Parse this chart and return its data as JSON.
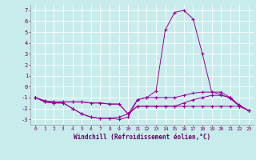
{
  "xlabel": "Windchill (Refroidissement éolien,°C)",
  "background_color": "#c8ecec",
  "grid_color": "#aadddd",
  "line_color": "#990099",
  "xlim": [
    -0.5,
    23.5
  ],
  "ylim": [
    -3.5,
    7.5
  ],
  "xticks": [
    0,
    1,
    2,
    3,
    4,
    5,
    6,
    7,
    8,
    9,
    10,
    11,
    12,
    13,
    14,
    15,
    16,
    17,
    18,
    19,
    20,
    21,
    22,
    23
  ],
  "yticks": [
    -3,
    -2,
    -1,
    0,
    1,
    2,
    3,
    4,
    5,
    6,
    7
  ],
  "line1_y": [
    -1.0,
    -1.4,
    -1.5,
    -1.5,
    -2.0,
    -2.5,
    -2.8,
    -2.9,
    -2.9,
    -3.0,
    -2.8,
    -1.2,
    -1.0,
    -0.4,
    5.2,
    6.8,
    7.0,
    6.2,
    3.0,
    -0.5,
    -0.7,
    -1.1,
    -1.8,
    -2.2
  ],
  "line2_y": [
    -1.0,
    -1.3,
    -1.4,
    -1.4,
    -1.4,
    -1.4,
    -1.5,
    -1.5,
    -1.6,
    -1.6,
    -2.5,
    -1.2,
    -1.0,
    -1.0,
    -1.0,
    -1.0,
    -0.8,
    -0.6,
    -0.5,
    -0.5,
    -0.5,
    -1.0,
    -1.7,
    -2.2
  ],
  "line3_y": [
    -1.0,
    -1.3,
    -1.4,
    -1.4,
    -1.4,
    -1.4,
    -1.5,
    -1.5,
    -1.6,
    -1.6,
    -2.5,
    -1.8,
    -1.8,
    -1.8,
    -1.8,
    -1.8,
    -1.5,
    -1.2,
    -1.0,
    -0.8,
    -0.8,
    -1.0,
    -1.8,
    -2.2
  ],
  "line4_y": [
    -1.0,
    -1.4,
    -1.5,
    -1.5,
    -2.0,
    -2.5,
    -2.8,
    -2.9,
    -2.9,
    -2.8,
    -2.5,
    -1.8,
    -1.8,
    -1.8,
    -1.8,
    -1.8,
    -1.8,
    -1.8,
    -1.8,
    -1.8,
    -1.8,
    -1.8,
    -1.8,
    -2.2
  ]
}
